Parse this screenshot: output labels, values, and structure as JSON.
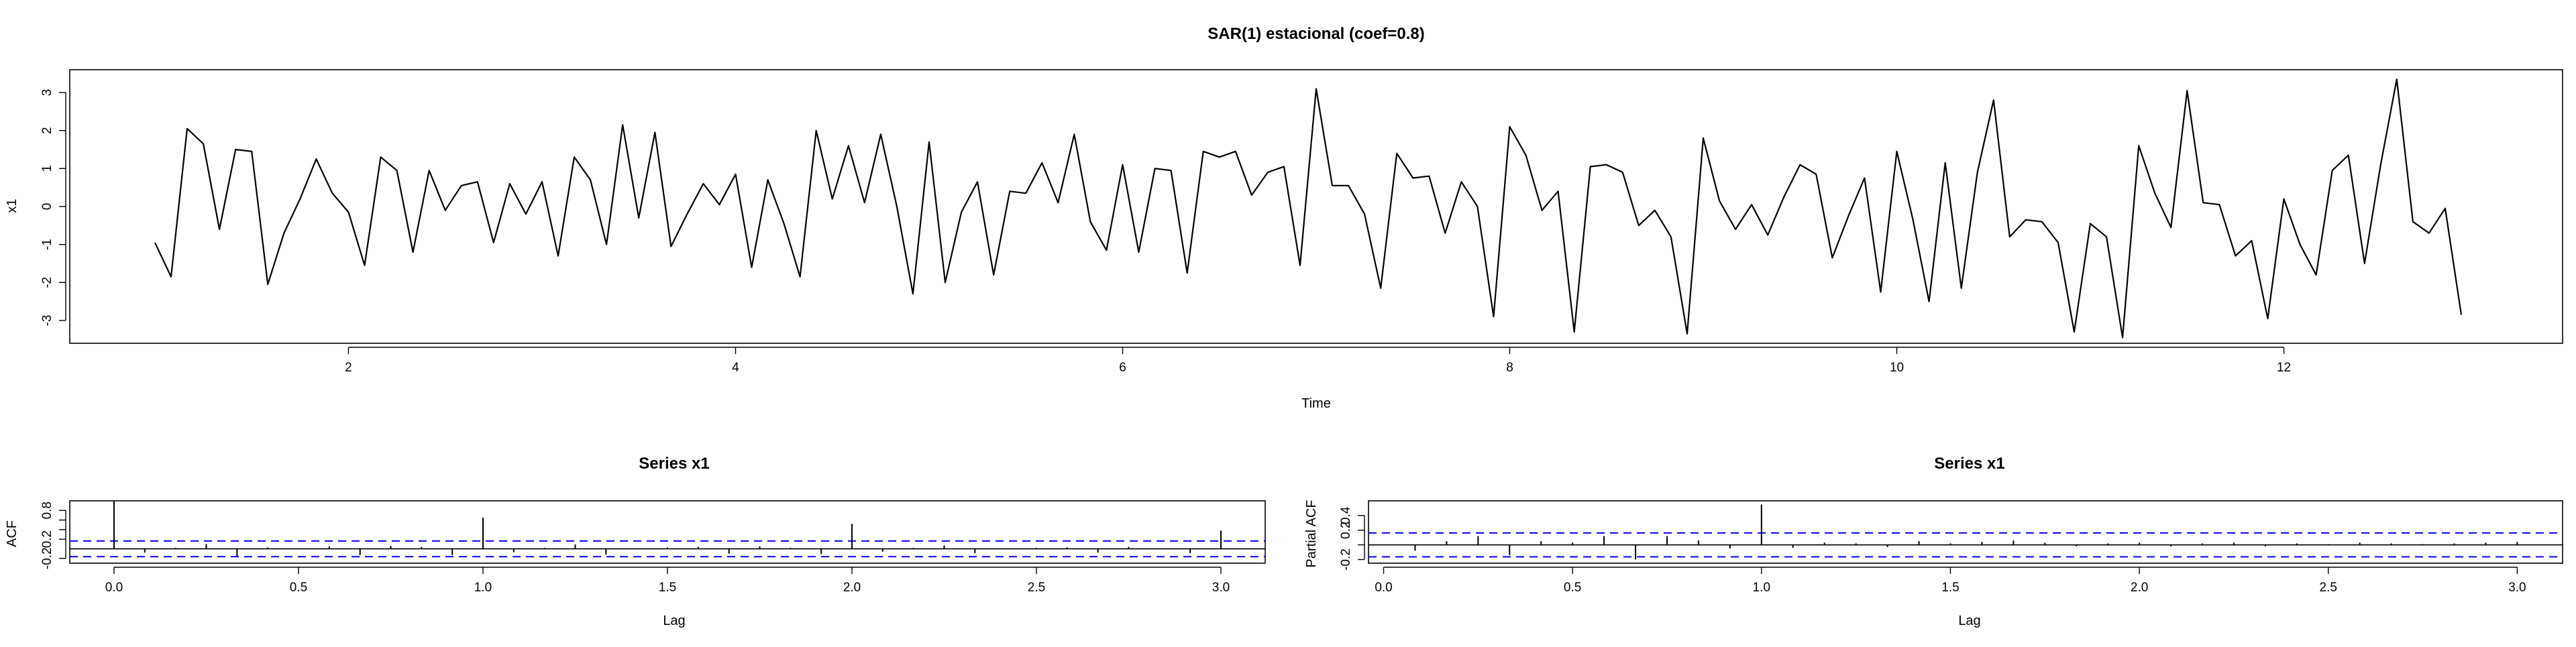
{
  "chart_data": [
    {
      "type": "line",
      "title": "SAR(1) estacional (coef=0.8)",
      "xlabel": "Time",
      "ylabel": "x1",
      "xlim": [
        0.56,
        13.44
      ],
      "ylim": [
        -3.6,
        3.6
      ],
      "xticks": [
        2,
        4,
        6,
        8,
        10,
        12
      ],
      "yticks": [
        -3,
        -2,
        -1,
        0,
        1,
        2,
        3
      ],
      "frequency": 12,
      "start": 1,
      "series": [
        {
          "values": [
            -0.95,
            -1.85,
            2.05,
            1.65,
            -0.6,
            1.5,
            1.45,
            -2.05,
            -0.7,
            0.2,
            1.25,
            0.35,
            -0.15,
            -1.55,
            1.3,
            0.95,
            -1.2,
            0.95,
            -0.1,
            0.55,
            0.65,
            -0.95,
            0.6,
            -0.2,
            0.65,
            -1.3,
            1.3,
            0.7,
            -1.0,
            2.15,
            -0.3,
            1.95,
            -1.05,
            -0.2,
            0.6,
            0.05,
            0.85,
            -1.6,
            0.7,
            -0.45,
            -1.85,
            2.0,
            0.2,
            1.6,
            0.1,
            1.9,
            0.0,
            -2.3,
            1.7,
            -2.0,
            -0.15,
            0.65,
            -1.8,
            0.4,
            0.35,
            1.15,
            0.1,
            1.9,
            -0.4,
            -1.15,
            1.1,
            -1.2,
            1.0,
            0.95,
            -1.75,
            1.45,
            1.3,
            1.45,
            0.3,
            0.9,
            1.05,
            -1.55,
            3.1,
            0.55,
            0.55,
            -0.2,
            -2.15,
            1.4,
            0.75,
            0.8,
            -0.7,
            0.65,
            0.0,
            -2.9,
            2.1,
            1.35,
            -0.1,
            0.4,
            -3.3,
            1.05,
            1.1,
            0.9,
            -0.5,
            -0.1,
            -0.8,
            -3.35,
            1.8,
            0.15,
            -0.6,
            0.05,
            -0.75,
            0.25,
            1.1,
            0.85,
            -1.35,
            -0.25,
            0.75,
            -2.25,
            1.45,
            -0.35,
            -2.5,
            1.15,
            -2.15,
            0.9,
            2.8,
            -0.8,
            -0.35,
            -0.4,
            -0.95,
            -3.3,
            -0.45,
            -0.8,
            -3.45,
            1.6,
            0.35,
            -0.55,
            3.05,
            0.1,
            0.05,
            -1.3,
            -0.9,
            -2.95,
            0.2,
            -1.0,
            -1.8,
            0.95,
            1.35,
            -1.5,
            1.1,
            3.35,
            -0.4,
            -0.7,
            -0.05,
            -2.85
          ]
        }
      ]
    },
    {
      "type": "bar",
      "title": "Series  x1",
      "xlabel": "Lag",
      "ylabel": "ACF",
      "xlim": [
        -0.12,
        3.12
      ],
      "ylim": [
        -0.3,
        1.0
      ],
      "xticks": [
        0.0,
        0.5,
        1.0,
        1.5,
        2.0,
        2.5,
        3.0
      ],
      "xtick_labels": [
        "0.0",
        "0.5",
        "1.0",
        "1.5",
        "2.0",
        "2.5",
        "3.0"
      ],
      "yticks": [
        -0.2,
        0.2,
        0.4,
        0.6,
        0.8
      ],
      "ytick_labels": [
        "-0.2",
        "0.2",
        "",
        "",
        "0.8"
      ],
      "ci": 0.163,
      "lags": [
        0.0,
        0.0833,
        0.1667,
        0.25,
        0.3333,
        0.4167,
        0.5,
        0.5833,
        0.6667,
        0.75,
        0.8333,
        0.9167,
        1.0,
        1.0833,
        1.1667,
        1.25,
        1.3333,
        1.4167,
        1.5,
        1.5833,
        1.6667,
        1.75,
        1.8333,
        1.9167,
        2.0,
        2.0833,
        2.1667,
        2.25,
        2.3333,
        2.4167,
        2.5,
        2.5833,
        2.6667,
        2.75,
        2.8333,
        2.9167,
        3.0
      ],
      "values": [
        1.0,
        -0.08,
        0.02,
        0.1,
        -0.15,
        0.03,
        0.01,
        0.05,
        -0.13,
        0.06,
        0.04,
        -0.13,
        0.65,
        -0.07,
        0.02,
        0.09,
        -0.12,
        0.01,
        0.03,
        0.04,
        -0.1,
        0.05,
        0.02,
        -0.11,
        0.52,
        -0.06,
        0.02,
        0.07,
        -0.09,
        0.01,
        0.02,
        0.03,
        -0.08,
        0.04,
        0.01,
        -0.09,
        0.38
      ]
    },
    {
      "type": "bar",
      "title": "Series  x1",
      "xlabel": "Lag",
      "ylabel": "Partial ACF",
      "xlim": [
        -0.04,
        3.12
      ],
      "ylim": [
        -0.25,
        0.6
      ],
      "xticks": [
        0.0,
        0.5,
        1.0,
        1.5,
        2.0,
        2.5,
        3.0
      ],
      "xtick_labels": [
        "0.0",
        "0.5",
        "1.0",
        "1.5",
        "2.0",
        "2.5",
        "3.0"
      ],
      "yticks": [
        -0.2,
        0.0,
        0.2,
        0.4
      ],
      "ytick_labels": [
        "-0.2",
        "",
        "0.2",
        "0.4"
      ],
      "ci": 0.163,
      "lags": [
        0.0833,
        0.1667,
        0.25,
        0.3333,
        0.4167,
        0.5,
        0.5833,
        0.6667,
        0.75,
        0.8333,
        0.9167,
        1.0,
        1.0833,
        1.1667,
        1.25,
        1.3333,
        1.4167,
        1.5,
        1.5833,
        1.6667,
        1.75,
        1.8333,
        1.9167,
        2.0,
        2.0833,
        2.1667,
        2.25,
        2.3333,
        2.4167,
        2.5,
        2.5833,
        2.6667,
        2.75,
        2.8333,
        2.9167,
        3.0
      ],
      "values": [
        -0.08,
        0.05,
        0.12,
        -0.14,
        0.05,
        0.03,
        0.12,
        -0.2,
        0.12,
        0.06,
        -0.05,
        0.55,
        -0.04,
        0.03,
        0.02,
        -0.03,
        0.05,
        0.02,
        0.04,
        0.06,
        0.03,
        -0.02,
        0.02,
        0.03,
        -0.02,
        0.02,
        0.03,
        -0.02,
        0.02,
        0.01,
        0.03,
        0.02,
        0.01,
        0.02,
        0.03,
        0.04
      ]
    }
  ],
  "colors": {
    "line": "#000000",
    "ci": "#0000ff",
    "axis": "#000000"
  }
}
